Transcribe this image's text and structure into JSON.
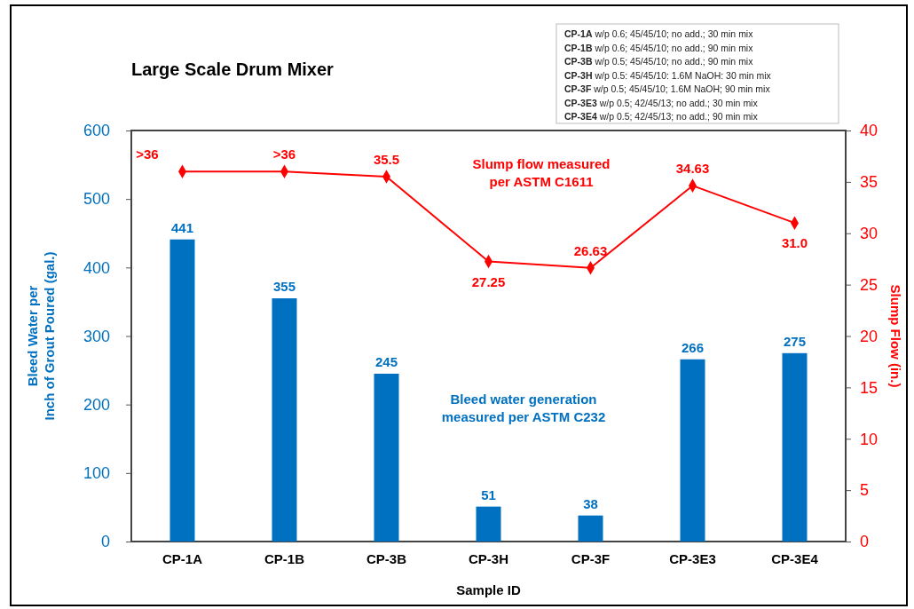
{
  "chart_data": {
    "type": "bar",
    "title": "Large Scale Drum Mixer",
    "xlabel": "Sample ID",
    "ylabel": "Bleed Water per\nInch of Grout Poured (gal.)",
    "y2label": "Slump Flow (in.)",
    "categories": [
      "CP-1A",
      "CP-1B",
      "CP-3B",
      "CP-3H",
      "CP-3F",
      "CP-3E3",
      "CP-3E4"
    ],
    "series": [
      {
        "color": "#0070c0",
        "values": [
          441,
          355,
          245,
          51,
          38,
          266,
          275
        ]
      },
      {
        "type": "line",
        "axis": "y2",
        "color": "#ff0000",
        "marker": "diamond",
        "values": [
          36,
          36,
          35.5,
          27.25,
          26.63,
          34.63,
          31.0
        ],
        "value_labels": [
          ">36",
          ">36",
          "35.5",
          "27.25",
          "26.63",
          "34.63",
          "31.0"
        ]
      }
    ],
    "ylim": [
      0,
      600
    ],
    "yticks": [
      0,
      100,
      200,
      300,
      400,
      500,
      600
    ],
    "y2lim": [
      0,
      40
    ],
    "y2ticks": [
      0,
      5,
      10,
      15,
      20,
      25,
      30,
      35,
      40
    ],
    "data_labels": true,
    "grid": false,
    "annotations": [
      "CP-1A w/p 0.6; 45/45/10; no add.; 30 min mix\nCP-1B w/p 0.6; 45/45/10; no add.; 90 min mix\nCP-3B w/p 0.5; 45/45/10; no add.; 90 min mix\nCP-3H w/p 0.5: 45/45/10: 1.6M NaOH: 30 min mix\nCP-3F w/p 0.5; 45/45/10; 1.6M NaOH; 90 min mix\nCP-3E3 w/p 0.5; 42/45/13; no add.; 30 min mix\nCP-3E4 w/p 0.5; 42/45/13; no add.; 90 min mix",
      "Slump flow measured\nper ASTM C1611",
      "Bleed water generation\nmeasured per ASTM C232"
    ]
  }
}
